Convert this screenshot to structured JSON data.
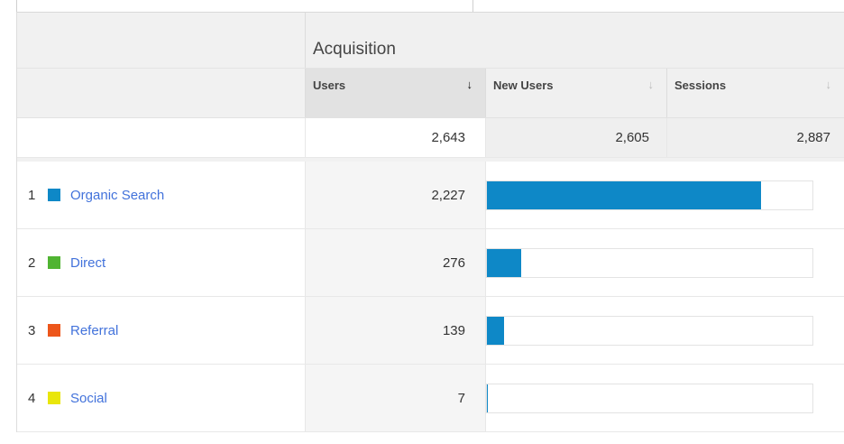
{
  "header": {
    "group_title": "Acquisition",
    "sort_icon": "↓",
    "columns": [
      {
        "label": "Users",
        "sorted": true
      },
      {
        "label": "New Users",
        "sorted": false
      },
      {
        "label": "Sessions",
        "sorted": false
      }
    ]
  },
  "totals": {
    "users": "2,643",
    "new_users": "2,605",
    "sessions": "2,887"
  },
  "rows": [
    {
      "rank": "1",
      "channel": "Organic Search",
      "swatch_color": "#0e88c7",
      "users": "2,227",
      "users_value": 2227
    },
    {
      "rank": "2",
      "channel": "Direct",
      "swatch_color": "#50b432",
      "users": "276",
      "users_value": 276
    },
    {
      "rank": "3",
      "channel": "Referral",
      "swatch_color": "#ed561b",
      "users": "139",
      "users_value": 139
    },
    {
      "rank": "4",
      "channel": "Social",
      "swatch_color": "#e9e60b",
      "users": "7",
      "users_value": 7
    }
  ],
  "bar": {
    "max_value": 2643,
    "color": "#0e88c7"
  }
}
